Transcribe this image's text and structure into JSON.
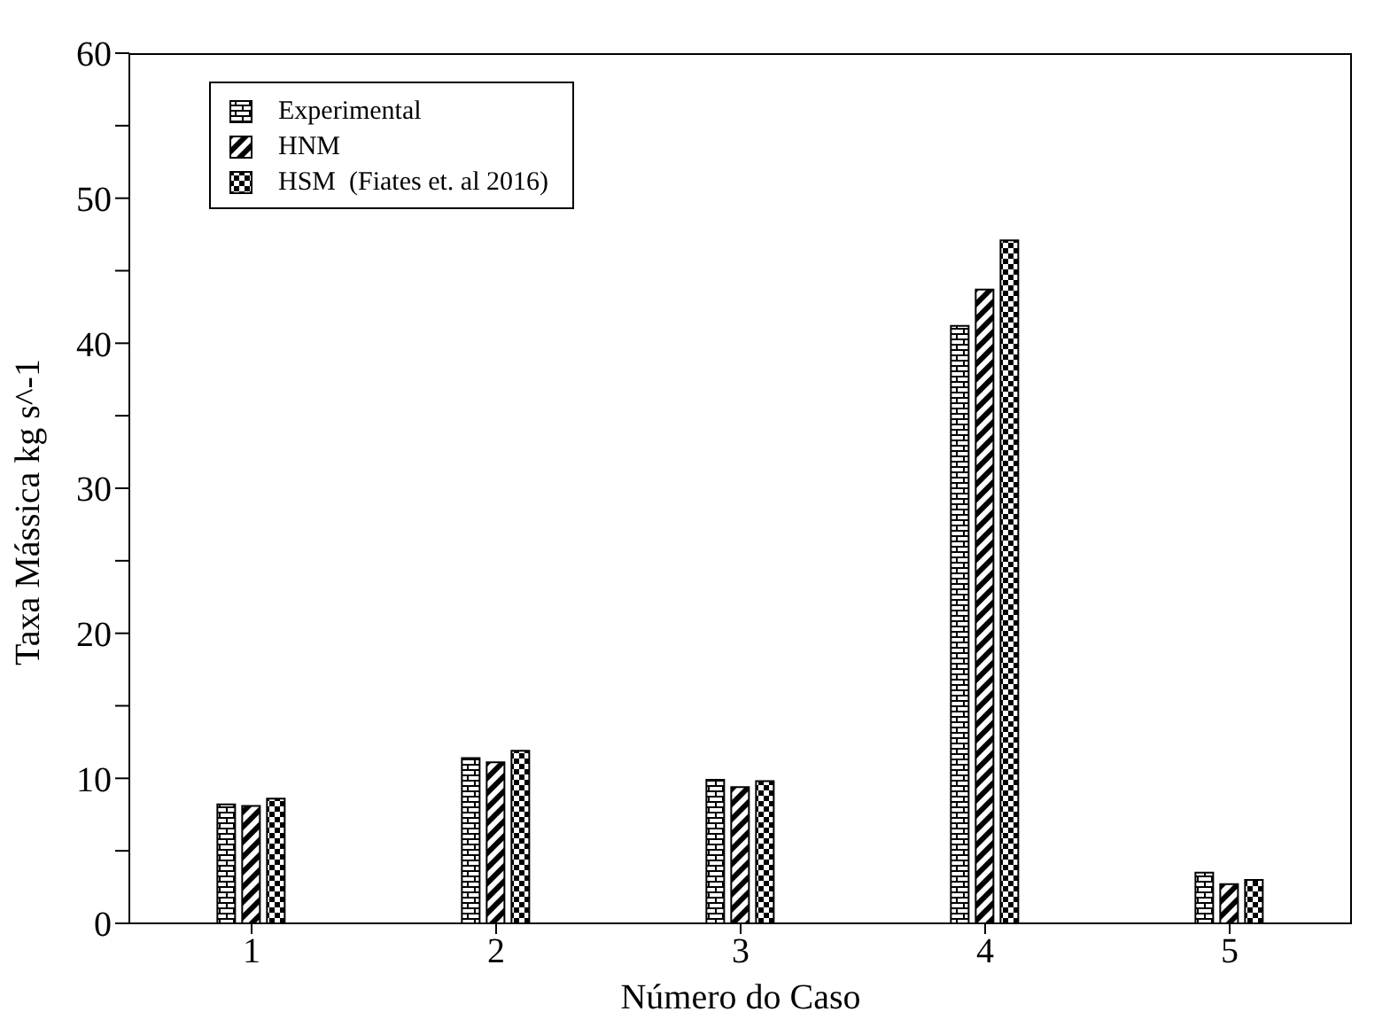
{
  "chart_data": {
    "type": "bar",
    "xlabel": "Número do Caso",
    "ylabel": "Taxa Mássica kg s^-1",
    "categories": [
      "1",
      "2",
      "3",
      "4",
      "5"
    ],
    "series": [
      {
        "name": "Experimental",
        "color": "#000000",
        "values": [
          8.2,
          11.4,
          9.9,
          41.2,
          3.5
        ]
      },
      {
        "name": "HNM",
        "color": "#000000",
        "values": [
          8.1,
          11.1,
          9.4,
          43.7,
          2.7
        ]
      },
      {
        "name": "HSM  (Fiates et. al 2016)",
        "color": "#000000",
        "values": [
          8.6,
          11.9,
          9.8,
          47.1,
          3.0
        ]
      }
    ],
    "ylim": [
      0,
      60
    ],
    "yticks": [
      0,
      {
        "value": 5,
        "label": null
      },
      10,
      {
        "value": 15,
        "label": null
      },
      20,
      {
        "value": 25,
        "label": null
      },
      30,
      {
        "value": 35,
        "label": null
      },
      40,
      {
        "value": 45,
        "label": null
      },
      50,
      {
        "value": 55,
        "label": null
      },
      60
    ],
    "legend": "top left"
  }
}
